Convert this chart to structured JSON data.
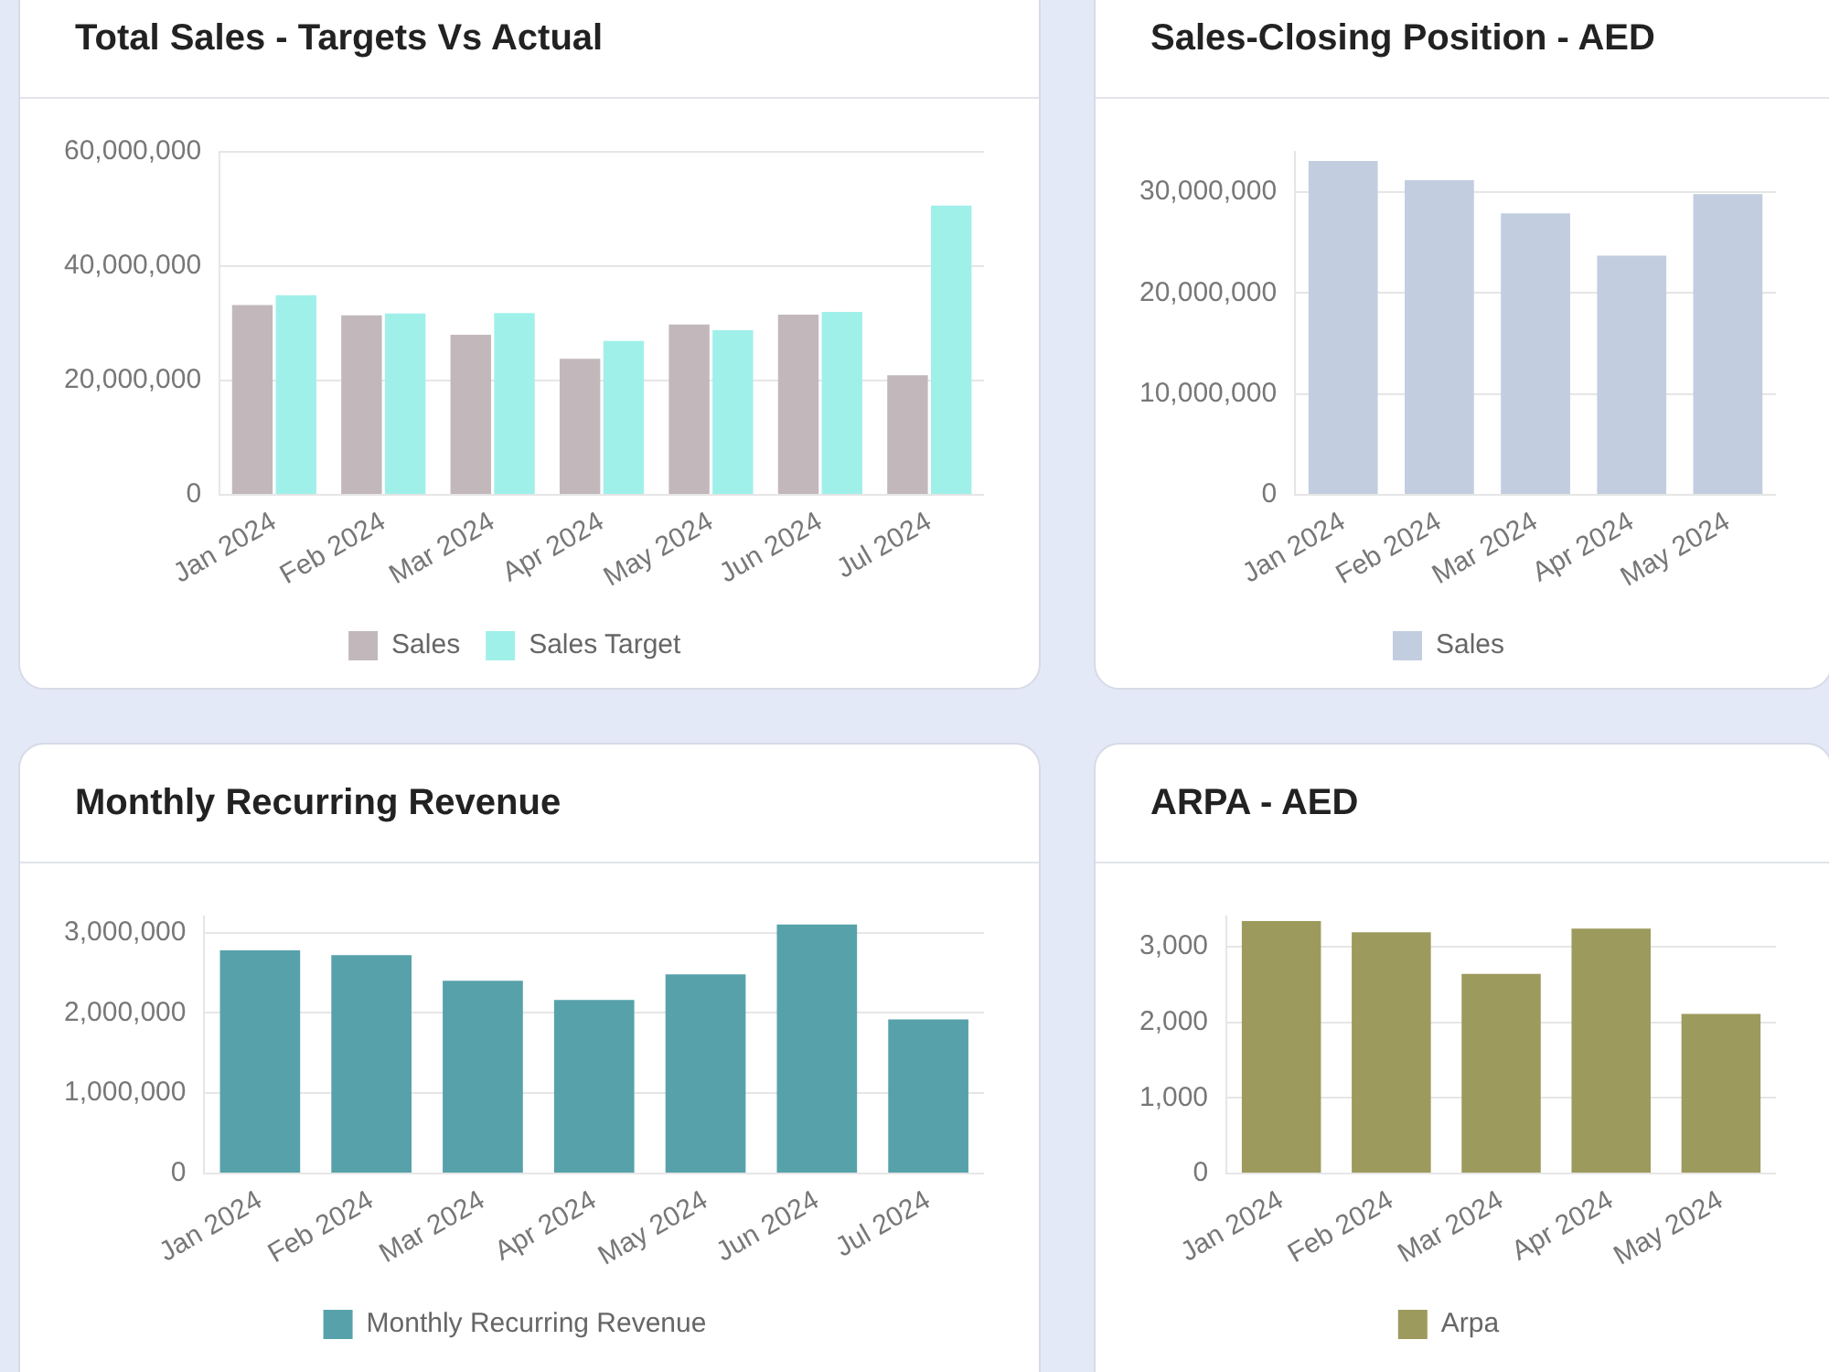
{
  "chart_data": [
    {
      "type": "bar",
      "title": "Total Sales - Targets Vs Actual",
      "categories": [
        "Jan 2024",
        "Feb 2024",
        "Mar 2024",
        "Apr 2024",
        "May 2024",
        "Jun 2024",
        "Jul 2024"
      ],
      "series": [
        {
          "name": "Sales",
          "color": "#c2b8bc",
          "values": [
            33200000,
            31400000,
            28000000,
            23800000,
            29800000,
            31500000,
            20900000
          ]
        },
        {
          "name": "Sales Target",
          "color": "#a0f0ea",
          "values": [
            34900000,
            31700000,
            31800000,
            26900000,
            28800000,
            32000000,
            50600000
          ]
        }
      ],
      "ylim": [
        0,
        60000000
      ],
      "yticks": [
        {
          "value": 0,
          "label": "0"
        },
        {
          "value": 20000000,
          "label": "20,000,000"
        },
        {
          "value": 40000000,
          "label": "40,000,000"
        },
        {
          "value": 60000000,
          "label": "60,000,000"
        }
      ],
      "grid": "y",
      "legend": "bottom"
    },
    {
      "type": "bar",
      "title": "Sales-Closing Position - AED",
      "categories": [
        "Jan 2024",
        "Feb 2024",
        "Mar 2024",
        "Apr 2024",
        "May 2024"
      ],
      "series": [
        {
          "name": "Sales",
          "color": "#c2cde0",
          "values": [
            33100000,
            31200000,
            27900000,
            23700000,
            29800000
          ]
        }
      ],
      "ylim": [
        0,
        34000000
      ],
      "yticks": [
        {
          "value": 0,
          "label": "0"
        },
        {
          "value": 10000000,
          "label": "10,000,000"
        },
        {
          "value": 20000000,
          "label": "20,000,000"
        },
        {
          "value": 30000000,
          "label": "30,000,000"
        }
      ],
      "grid": "y",
      "legend": "bottom"
    },
    {
      "type": "bar",
      "title": "Monthly Recurring Revenue",
      "categories": [
        "Jan 2024",
        "Feb 2024",
        "Mar 2024",
        "Apr 2024",
        "May 2024",
        "Jun 2024",
        "Jul 2024"
      ],
      "series": [
        {
          "name": "Monthly Recurring Revenue",
          "color": "#57a2aa",
          "values": [
            2780000,
            2720000,
            2400000,
            2160000,
            2480000,
            3100000,
            1920000
          ]
        }
      ],
      "ylim": [
        0,
        3200000
      ],
      "yticks": [
        {
          "value": 0,
          "label": "0"
        },
        {
          "value": 1000000,
          "label": "1,000,000"
        },
        {
          "value": 2000000,
          "label": "2,000,000"
        },
        {
          "value": 3000000,
          "label": "3,000,000"
        }
      ],
      "grid": "y",
      "legend": "bottom"
    },
    {
      "type": "bar",
      "title": "ARPA - AED",
      "categories": [
        "Jan 2024",
        "Feb 2024",
        "Mar 2024",
        "Apr 2024",
        "May 2024"
      ],
      "series": [
        {
          "name": "Arpa",
          "color": "#9d9a5d",
          "values": [
            3340,
            3190,
            2640,
            3240,
            2110
          ]
        }
      ],
      "ylim": [
        0,
        3400
      ],
      "yticks": [
        {
          "value": 0,
          "label": "0"
        },
        {
          "value": 1000,
          "label": "1,000"
        },
        {
          "value": 2000,
          "label": "2,000"
        },
        {
          "value": 3000,
          "label": "3,000"
        }
      ],
      "grid": "y",
      "legend": "bottom"
    }
  ]
}
